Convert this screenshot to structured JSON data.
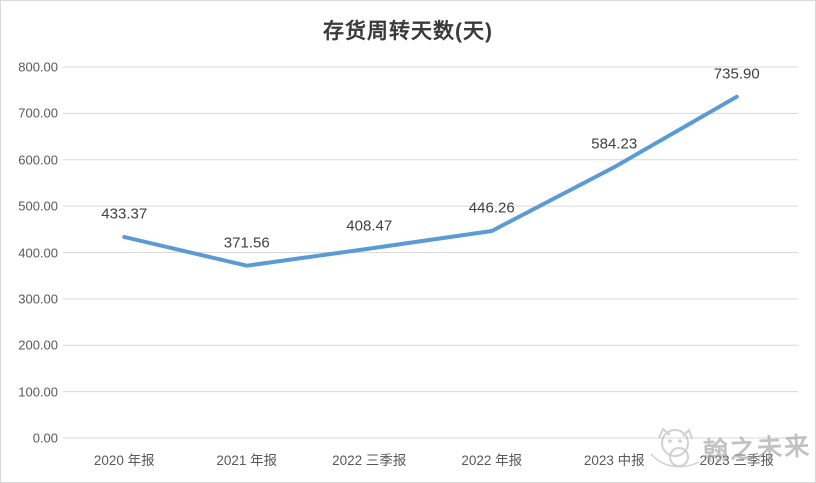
{
  "chart_data": {
    "type": "line",
    "title": "存货周转天数(天)",
    "categories": [
      "2020 年报",
      "2021 年报",
      "2022 三季报",
      "2022 年报",
      "2023 中报",
      "2023 三季报"
    ],
    "values": [
      433.37,
      371.56,
      408.47,
      446.26,
      584.23,
      735.9
    ],
    "data_labels": [
      "433.37",
      "371.56",
      "408.47",
      "446.26",
      "584.23",
      "735.90"
    ],
    "xlabel": "",
    "ylabel": "",
    "ylim": [
      0,
      800
    ],
    "ytick_step": 100,
    "yticks": [
      "0.00",
      "100.00",
      "200.00",
      "300.00",
      "400.00",
      "500.00",
      "600.00",
      "700.00",
      "800.00"
    ],
    "grid": true,
    "legend_position": "none",
    "line_color": "#5b9bd5",
    "gridline_color": "#d9d9d9",
    "data_label_color": "#3f3f3f",
    "tick_label_color": "#595959"
  },
  "watermark": {
    "text": "翰之未来",
    "icon": "cat-logo-icon"
  }
}
